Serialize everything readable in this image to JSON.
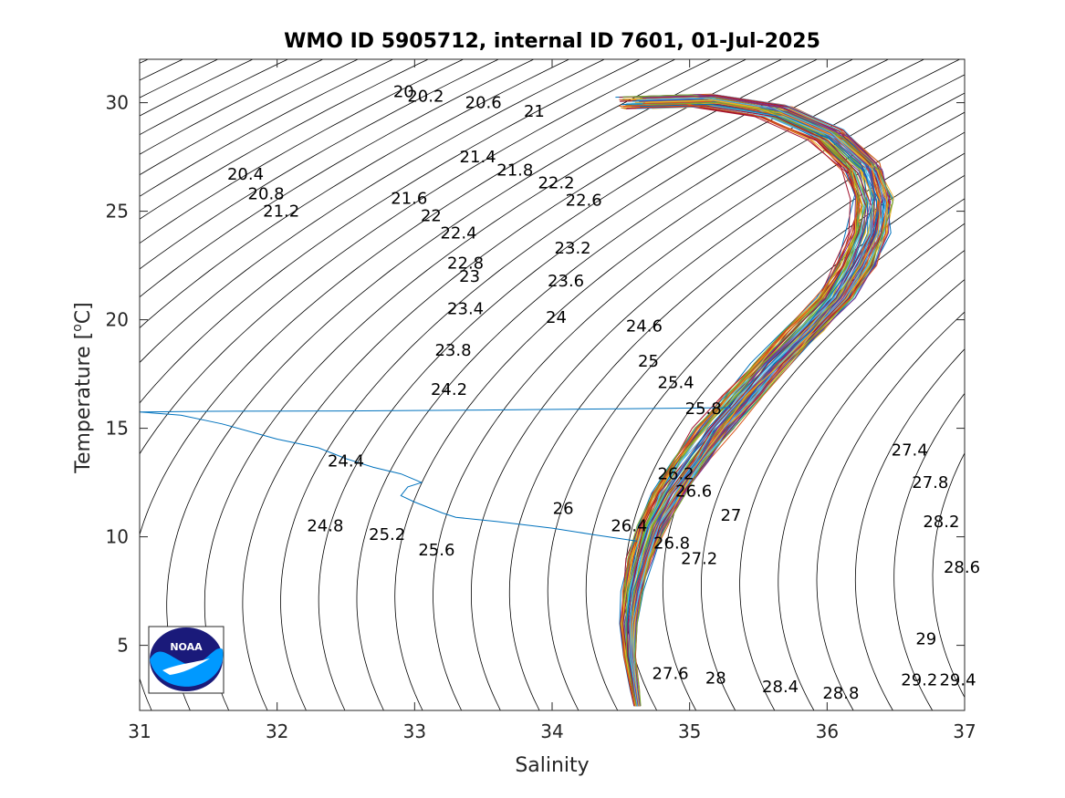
{
  "chart_data": {
    "type": "line",
    "title": "WMO ID 5905712, internal ID 7601, 01-Jul-2025",
    "xlabel": "Salinity",
    "ylabel_main": "Temperature [",
    "ylabel_sup": "o",
    "ylabel_end": "C]",
    "xlim": [
      31,
      37
    ],
    "ylim": [
      2,
      32
    ],
    "xticks": [
      31,
      32,
      33,
      34,
      35,
      36,
      37
    ],
    "yticks": [
      5,
      10,
      15,
      20,
      25,
      30
    ],
    "grid": false,
    "box": true,
    "density_contours": {
      "levels_start": 20.0,
      "levels_end": 29.4,
      "levels_step": 0.2,
      "color": "#000000",
      "labels": [
        {
          "text": "20",
          "s": 32.92,
          "t": 30.5
        },
        {
          "text": "20.2",
          "s": 33.08,
          "t": 30.3
        },
        {
          "text": "20.6",
          "s": 33.5,
          "t": 30.0
        },
        {
          "text": "21",
          "s": 33.87,
          "t": 29.6
        },
        {
          "text": "20.4",
          "s": 31.77,
          "t": 26.7
        },
        {
          "text": "20.8",
          "s": 31.92,
          "t": 25.8
        },
        {
          "text": "21.2",
          "s": 32.03,
          "t": 25.0
        },
        {
          "text": "21.4",
          "s": 33.46,
          "t": 27.5
        },
        {
          "text": "21.8",
          "s": 33.73,
          "t": 26.9
        },
        {
          "text": "22.2",
          "s": 34.03,
          "t": 26.3
        },
        {
          "text": "22.6",
          "s": 34.23,
          "t": 25.5
        },
        {
          "text": "21.6",
          "s": 32.96,
          "t": 25.6
        },
        {
          "text": "22",
          "s": 33.12,
          "t": 24.8
        },
        {
          "text": "22.4",
          "s": 33.32,
          "t": 24.0
        },
        {
          "text": "22.8",
          "s": 33.37,
          "t": 22.6
        },
        {
          "text": "23",
          "s": 33.4,
          "t": 22.0
        },
        {
          "text": "23.2",
          "s": 34.15,
          "t": 23.3
        },
        {
          "text": "23.6",
          "s": 34.1,
          "t": 21.8
        },
        {
          "text": "23.4",
          "s": 33.37,
          "t": 20.5
        },
        {
          "text": "24",
          "s": 34.03,
          "t": 20.1
        },
        {
          "text": "24.6",
          "s": 34.67,
          "t": 19.7
        },
        {
          "text": "23.8",
          "s": 33.28,
          "t": 18.6
        },
        {
          "text": "25",
          "s": 34.7,
          "t": 18.1
        },
        {
          "text": "25.4",
          "s": 34.9,
          "t": 17.1
        },
        {
          "text": "24.2",
          "s": 33.25,
          "t": 16.8
        },
        {
          "text": "25.8",
          "s": 35.1,
          "t": 15.9
        },
        {
          "text": "27.4",
          "s": 36.6,
          "t": 14.0
        },
        {
          "text": "24.4",
          "s": 32.5,
          "t": 13.5
        },
        {
          "text": "26.2",
          "s": 34.9,
          "t": 12.9
        },
        {
          "text": "27.8",
          "s": 36.75,
          "t": 12.5
        },
        {
          "text": "26.6",
          "s": 35.03,
          "t": 12.1
        },
        {
          "text": "26",
          "s": 34.08,
          "t": 11.3
        },
        {
          "text": "27",
          "s": 35.3,
          "t": 11.0
        },
        {
          "text": "28.2",
          "s": 36.83,
          "t": 10.7
        },
        {
          "text": "24.8",
          "s": 32.35,
          "t": 10.5
        },
        {
          "text": "26.4",
          "s": 34.56,
          "t": 10.5
        },
        {
          "text": "25.2",
          "s": 32.8,
          "t": 10.1
        },
        {
          "text": "26.8",
          "s": 34.87,
          "t": 9.7
        },
        {
          "text": "25.6",
          "s": 33.16,
          "t": 9.4
        },
        {
          "text": "27.2",
          "s": 35.07,
          "t": 9.0
        },
        {
          "text": "28.6",
          "s": 36.98,
          "t": 8.6
        },
        {
          "text": "29",
          "s": 36.72,
          "t": 5.3
        },
        {
          "text": "27.6",
          "s": 34.86,
          "t": 3.7
        },
        {
          "text": "28",
          "s": 35.19,
          "t": 3.5
        },
        {
          "text": "28.4",
          "s": 35.66,
          "t": 3.1
        },
        {
          "text": "29.2",
          "s": 36.67,
          "t": 3.4
        },
        {
          "text": "29.4",
          "s": 36.95,
          "t": 3.4
        },
        {
          "text": "28.8",
          "s": 36.1,
          "t": 2.8
        }
      ]
    },
    "profile_envelope": [
      [
        34.62,
        2.2
      ],
      [
        34.6,
        3.0
      ],
      [
        34.56,
        4.5
      ],
      [
        34.55,
        6.0
      ],
      [
        34.58,
        7.5
      ],
      [
        34.64,
        9.0
      ],
      [
        34.72,
        10.5
      ],
      [
        34.84,
        12.0
      ],
      [
        35.0,
        13.5
      ],
      [
        35.18,
        15.0
      ],
      [
        35.38,
        16.5
      ],
      [
        35.6,
        18.0
      ],
      [
        35.83,
        19.5
      ],
      [
        36.05,
        21.0
      ],
      [
        36.2,
        22.5
      ],
      [
        36.3,
        24.0
      ],
      [
        36.33,
        25.5
      ],
      [
        36.25,
        27.0
      ],
      [
        36.0,
        28.5
      ],
      [
        35.6,
        29.6
      ],
      [
        35.1,
        30.1
      ],
      [
        34.6,
        30.0
      ]
    ],
    "outlier_profile": [
      [
        34.62,
        9.8
      ],
      [
        34.3,
        10.1
      ],
      [
        34.0,
        10.4
      ],
      [
        33.6,
        10.7
      ],
      [
        33.3,
        10.9
      ],
      [
        33.2,
        11.1
      ],
      [
        33.0,
        11.6
      ],
      [
        32.9,
        11.9
      ],
      [
        32.95,
        12.3
      ],
      [
        33.05,
        12.5
      ],
      [
        32.9,
        12.9
      ],
      [
        32.7,
        13.2
      ],
      [
        32.5,
        13.6
      ],
      [
        32.3,
        14.1
      ],
      [
        32.0,
        14.5
      ],
      [
        31.6,
        15.2
      ],
      [
        31.3,
        15.6
      ],
      [
        31.0,
        15.75
      ],
      [
        31.5,
        15.78
      ],
      [
        32.5,
        15.8
      ],
      [
        33.5,
        15.84
      ],
      [
        34.5,
        15.9
      ],
      [
        35.3,
        15.95
      ]
    ],
    "profile_colors": [
      "#0072bd",
      "#d95319",
      "#edb120",
      "#7e2f8e",
      "#77ac30",
      "#4dbeee",
      "#a2142f"
    ],
    "outlier_color": "#0072bd"
  },
  "logo": {
    "text": "NOAA",
    "colors": {
      "dark": "#1a1a7a",
      "light": "#0099ff"
    }
  }
}
